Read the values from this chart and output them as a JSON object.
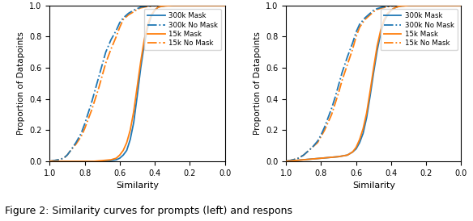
{
  "blue_color": "#1f77b4",
  "orange_color": "#ff7f0e",
  "ylabel": "Proportion of Datapoints",
  "xlabel": "Similarity",
  "figure_caption": "Figure 2: Similarity curves for prompts (left) and respons",
  "left_curves": {
    "mask_300k": {
      "x": [
        1.0,
        0.95,
        0.9,
        0.85,
        0.8,
        0.75,
        0.7,
        0.65,
        0.62,
        0.6,
        0.58,
        0.56,
        0.54,
        0.52,
        0.5,
        0.48,
        0.46,
        0.44,
        0.42,
        0.4,
        0.38,
        0.36,
        0.34,
        0.3,
        0.2,
        0.1,
        0.0
      ],
      "y": [
        0.0,
        0.0,
        0.0,
        0.0,
        0.0,
        0.0,
        0.0,
        0.005,
        0.01,
        0.02,
        0.04,
        0.07,
        0.14,
        0.25,
        0.42,
        0.6,
        0.75,
        0.86,
        0.93,
        0.97,
        0.99,
        0.995,
        0.998,
        1.0,
        1.0,
        1.0,
        1.0
      ]
    },
    "nomask_300k": {
      "x": [
        1.0,
        0.95,
        0.92,
        0.9,
        0.88,
        0.85,
        0.82,
        0.8,
        0.78,
        0.76,
        0.74,
        0.72,
        0.7,
        0.68,
        0.65,
        0.62,
        0.6,
        0.58,
        0.55,
        0.52,
        0.5,
        0.48,
        0.45,
        0.42,
        0.4,
        0.38,
        0.35,
        0.3,
        0.2,
        0.0
      ],
      "y": [
        0.0,
        0.01,
        0.02,
        0.04,
        0.07,
        0.12,
        0.18,
        0.24,
        0.31,
        0.38,
        0.46,
        0.54,
        0.62,
        0.7,
        0.78,
        0.84,
        0.89,
        0.92,
        0.95,
        0.97,
        0.98,
        0.99,
        0.995,
        0.998,
        0.999,
        1.0,
        1.0,
        1.0,
        1.0,
        1.0
      ]
    },
    "mask_15k": {
      "x": [
        1.0,
        0.95,
        0.9,
        0.85,
        0.8,
        0.75,
        0.7,
        0.65,
        0.62,
        0.6,
        0.58,
        0.56,
        0.54,
        0.52,
        0.5,
        0.48,
        0.46,
        0.44,
        0.42,
        0.4,
        0.38,
        0.36,
        0.34,
        0.3,
        0.2,
        0.1,
        0.0
      ],
      "y": [
        0.0,
        0.0,
        0.0,
        0.0,
        0.0,
        0.0,
        0.005,
        0.01,
        0.02,
        0.04,
        0.07,
        0.12,
        0.2,
        0.32,
        0.48,
        0.64,
        0.78,
        0.88,
        0.94,
        0.97,
        0.99,
        0.995,
        0.998,
        1.0,
        1.0,
        1.0,
        1.0
      ]
    },
    "nomask_15k": {
      "x": [
        1.0,
        0.95,
        0.92,
        0.9,
        0.88,
        0.85,
        0.82,
        0.8,
        0.78,
        0.76,
        0.74,
        0.72,
        0.7,
        0.68,
        0.65,
        0.62,
        0.6,
        0.58,
        0.55,
        0.52,
        0.5,
        0.48,
        0.45,
        0.42,
        0.4,
        0.38,
        0.35,
        0.3,
        0.2,
        0.0
      ],
      "y": [
        0.0,
        0.01,
        0.02,
        0.04,
        0.07,
        0.11,
        0.16,
        0.21,
        0.27,
        0.33,
        0.4,
        0.47,
        0.55,
        0.63,
        0.72,
        0.8,
        0.86,
        0.91,
        0.94,
        0.96,
        0.975,
        0.985,
        0.992,
        0.996,
        0.998,
        1.0,
        1.0,
        1.0,
        1.0,
        1.0
      ]
    }
  },
  "right_curves": {
    "mask_300k": {
      "x": [
        1.0,
        0.95,
        0.9,
        0.85,
        0.8,
        0.75,
        0.7,
        0.65,
        0.62,
        0.6,
        0.58,
        0.56,
        0.54,
        0.52,
        0.5,
        0.48,
        0.46,
        0.44,
        0.42,
        0.4,
        0.38,
        0.36,
        0.34,
        0.3,
        0.2,
        0.1,
        0.0
      ],
      "y": [
        0.0,
        0.005,
        0.01,
        0.015,
        0.02,
        0.025,
        0.03,
        0.04,
        0.06,
        0.08,
        0.12,
        0.18,
        0.28,
        0.42,
        0.57,
        0.71,
        0.82,
        0.9,
        0.94,
        0.97,
        0.985,
        0.993,
        0.997,
        1.0,
        1.0,
        1.0,
        1.0
      ]
    },
    "nomask_300k": {
      "x": [
        1.0,
        0.96,
        0.93,
        0.9,
        0.88,
        0.85,
        0.82,
        0.8,
        0.78,
        0.76,
        0.74,
        0.72,
        0.7,
        0.68,
        0.65,
        0.62,
        0.6,
        0.58,
        0.55,
        0.52,
        0.5,
        0.48,
        0.45,
        0.42,
        0.4,
        0.38,
        0.35,
        0.3,
        0.2,
        0.0
      ],
      "y": [
        0.0,
        0.01,
        0.02,
        0.04,
        0.06,
        0.09,
        0.13,
        0.17,
        0.22,
        0.28,
        0.34,
        0.41,
        0.49,
        0.57,
        0.67,
        0.76,
        0.83,
        0.88,
        0.92,
        0.95,
        0.97,
        0.98,
        0.99,
        0.995,
        0.997,
        0.999,
        1.0,
        1.0,
        1.0,
        1.0
      ]
    },
    "mask_15k": {
      "x": [
        1.0,
        0.95,
        0.9,
        0.85,
        0.8,
        0.75,
        0.7,
        0.65,
        0.62,
        0.6,
        0.58,
        0.56,
        0.54,
        0.52,
        0.5,
        0.48,
        0.46,
        0.44,
        0.42,
        0.4,
        0.38,
        0.36,
        0.34,
        0.3,
        0.2,
        0.1,
        0.0
      ],
      "y": [
        0.0,
        0.005,
        0.01,
        0.015,
        0.02,
        0.025,
        0.03,
        0.04,
        0.06,
        0.09,
        0.14,
        0.21,
        0.31,
        0.45,
        0.6,
        0.74,
        0.84,
        0.91,
        0.95,
        0.97,
        0.985,
        0.993,
        0.997,
        1.0,
        1.0,
        1.0,
        1.0
      ]
    },
    "nomask_15k": {
      "x": [
        1.0,
        0.96,
        0.93,
        0.9,
        0.88,
        0.85,
        0.82,
        0.8,
        0.78,
        0.76,
        0.74,
        0.72,
        0.7,
        0.68,
        0.65,
        0.62,
        0.6,
        0.58,
        0.55,
        0.52,
        0.5,
        0.48,
        0.45,
        0.42,
        0.4,
        0.38,
        0.35,
        0.3,
        0.2,
        0.0
      ],
      "y": [
        0.0,
        0.01,
        0.02,
        0.04,
        0.06,
        0.09,
        0.12,
        0.16,
        0.2,
        0.25,
        0.3,
        0.37,
        0.44,
        0.52,
        0.62,
        0.72,
        0.8,
        0.86,
        0.91,
        0.94,
        0.96,
        0.975,
        0.985,
        0.992,
        0.996,
        0.998,
        1.0,
        1.0,
        1.0,
        1.0
      ]
    }
  },
  "caption_fontsize": 9
}
